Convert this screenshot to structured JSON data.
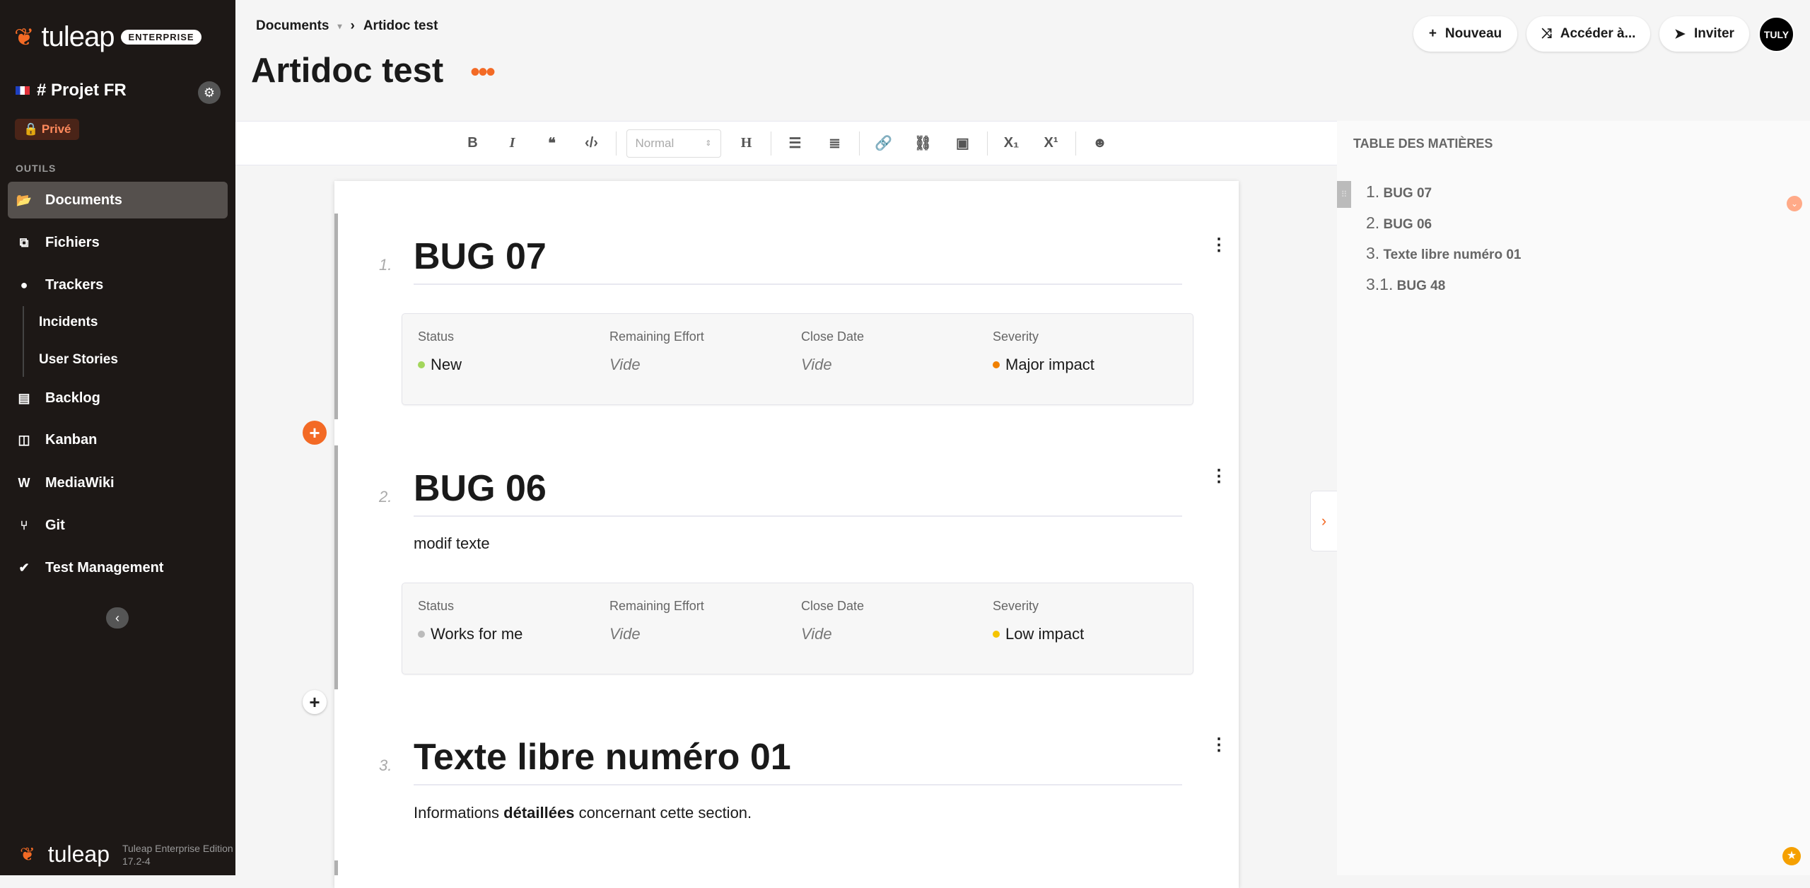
{
  "sidebar": {
    "logo": "tuleap",
    "edition_badge": "ENTERPRISE",
    "project": "# Projet FR",
    "privacy": "Privé",
    "section_label": "OUTILS",
    "items": [
      {
        "label": "Documents",
        "icon": "folder-open-icon",
        "active": true
      },
      {
        "label": "Fichiers",
        "icon": "files-icon"
      },
      {
        "label": "Trackers",
        "icon": "tracker-icon"
      },
      {
        "label": "Backlog",
        "icon": "backlog-icon"
      },
      {
        "label": "Kanban",
        "icon": "kanban-icon"
      },
      {
        "label": "MediaWiki",
        "icon": "mediawiki-icon"
      },
      {
        "label": "Git",
        "icon": "git-icon"
      },
      {
        "label": "Test Management",
        "icon": "test-management-icon"
      }
    ],
    "subitems": [
      "Incidents",
      "User Stories"
    ],
    "footer": {
      "logo": "tuleap",
      "edition": "Tuleap Enterprise Edition",
      "version": "17.2-4"
    }
  },
  "header": {
    "breadcrumb": [
      "Documents",
      "Artidoc test"
    ],
    "title": "Artidoc test",
    "buttons": {
      "new": "Nouveau",
      "goto": "Accéder à...",
      "invite": "Inviter"
    },
    "avatar": "TULY"
  },
  "toolbar": {
    "format_select": "Normal"
  },
  "document": {
    "sections": [
      {
        "number": "1.",
        "title": "BUG 07",
        "text": "",
        "fields": [
          {
            "label": "Status",
            "value": "New",
            "color": "#a3d65c"
          },
          {
            "label": "Remaining Effort",
            "value": "Vide"
          },
          {
            "label": "Close Date",
            "value": "Vide"
          },
          {
            "label": "Severity",
            "value": "Major impact",
            "color": "#f08000"
          }
        ]
      },
      {
        "number": "2.",
        "title": "BUG 06",
        "text": "modif texte",
        "fields": [
          {
            "label": "Status",
            "value": "Works for me",
            "color": "#bbbbbb"
          },
          {
            "label": "Remaining Effort",
            "value": "Vide"
          },
          {
            "label": "Close Date",
            "value": "Vide"
          },
          {
            "label": "Severity",
            "value": "Low impact",
            "color": "#f5c400"
          }
        ]
      },
      {
        "number": "3.",
        "title": "Texte libre numéro 01",
        "text_pre": "Informations ",
        "text_bold": "détaillées",
        "text_post": " concernant cette section."
      }
    ]
  },
  "toc": {
    "title": "TABLE DES MATIÈRES",
    "items": [
      {
        "num": "1.",
        "label": "BUG 07"
      },
      {
        "num": "2.",
        "label": "BUG 06"
      },
      {
        "num": "3.",
        "label": "Texte libre numéro 01"
      },
      {
        "num": "3.1.",
        "label": "BUG 48"
      }
    ]
  },
  "colors": {
    "accent": "#f36a25",
    "sidebar_bg": "#1d1816"
  }
}
